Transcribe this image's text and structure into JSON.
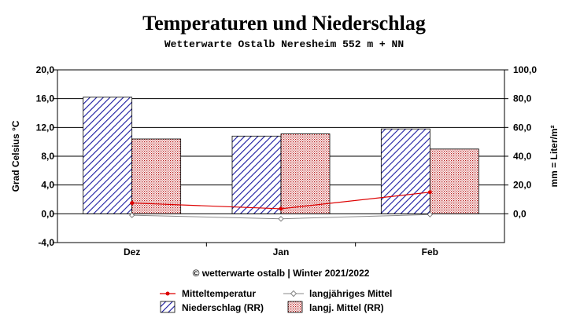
{
  "chart_data": {
    "type": "bar",
    "title": "Temperaturen und Niederschlag",
    "subtitle": "Wetterwarte Ostalb Neresheim 552 m + NN",
    "categories": [
      "Dez",
      "Jan",
      "Feb"
    ],
    "ylabel_left": "Grad Celsius °C",
    "ylabel_right": "mm = Liter/m²",
    "ylim_left": [
      -4,
      20
    ],
    "ylim_right": [
      -20,
      100
    ],
    "yticks_left": [
      "-4,0",
      "0,0",
      "4,0",
      "8,0",
      "12,0",
      "16,0",
      "20,0"
    ],
    "yticks_right": [
      "0,0",
      "20,0",
      "40,0",
      "60,0",
      "80,0",
      "100,0"
    ],
    "grid": true,
    "bar_series": [
      {
        "name": "Niederschlag (RR)",
        "axis": "right",
        "pattern": "diagonal-hatch",
        "color": "#1a1aa0",
        "values": [
          81,
          54,
          59
        ]
      },
      {
        "name": "langj. Mittel (RR)",
        "axis": "right",
        "pattern": "dotted",
        "color": "#b81818",
        "values": [
          52,
          55.5,
          45
        ]
      }
    ],
    "line_series": [
      {
        "name": "Mitteltemperatur",
        "axis": "left",
        "color": "#dd0000",
        "values": [
          1.5,
          0.7,
          3.0
        ]
      },
      {
        "name": "langjähriges Mittel",
        "axis": "left",
        "color": "#888888",
        "values": [
          -0.2,
          -0.7,
          -0.1
        ]
      }
    ],
    "legend_position": "bottom"
  },
  "footer": "© wetterwarte ostalb | Winter 2021/2022",
  "legend": {
    "mitteltemperatur": "Mitteltemperatur",
    "langjaehriges_mittel": "langjähriges Mittel",
    "niederschlag": "Niederschlag (RR)",
    "langj_mittel_rr": "langj. Mittel (RR)"
  }
}
